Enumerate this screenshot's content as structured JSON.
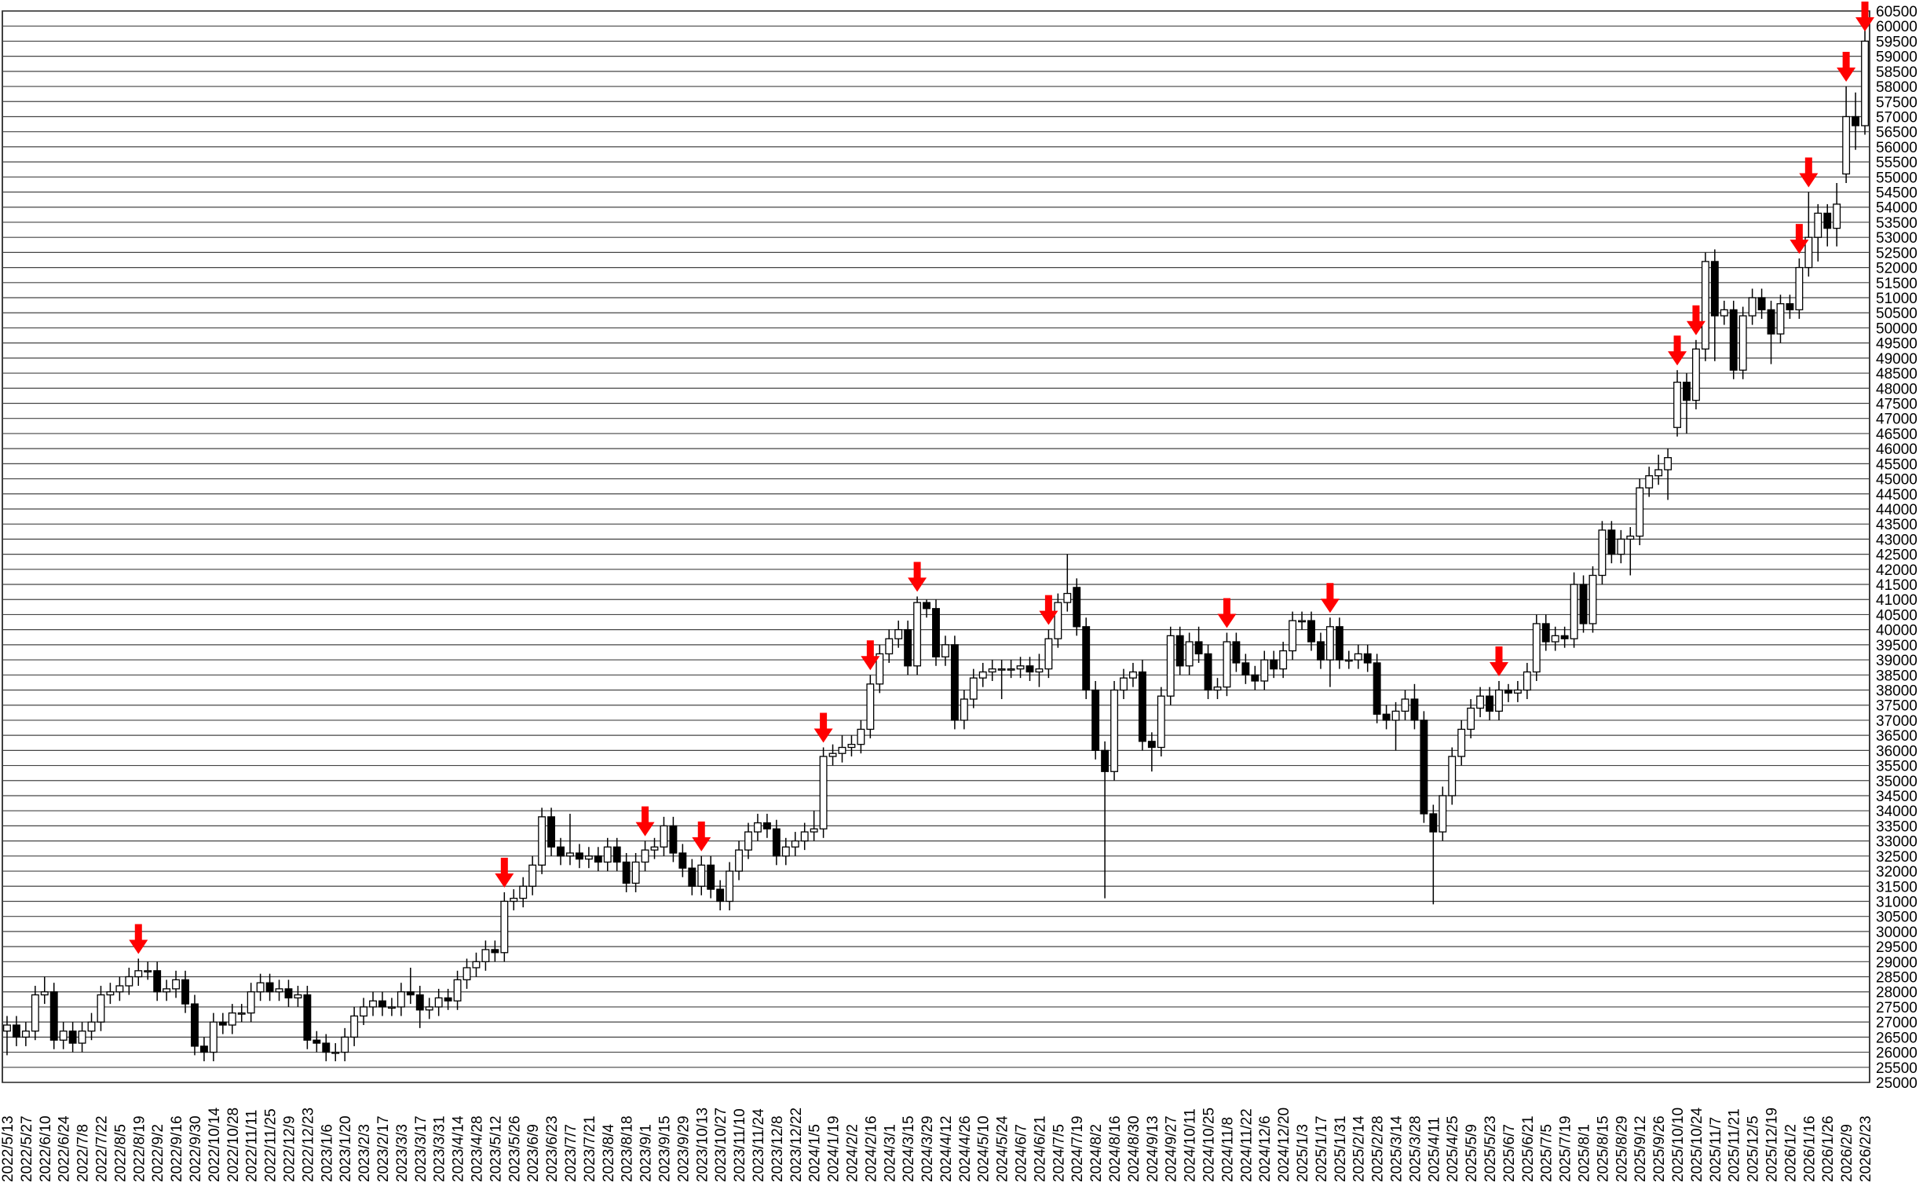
{
  "chart_data": {
    "type": "candlestick",
    "categories": [
      "2022/5/13",
      null,
      "2022/5/27",
      null,
      "2022/6/10",
      null,
      "2022/6/24",
      null,
      "2022/7/8",
      null,
      "2022/7/22",
      null,
      "2022/8/5",
      null,
      "2022/8/19",
      null,
      "2022/9/2",
      null,
      "2022/9/16",
      null,
      "2022/9/30",
      null,
      "2022/10/14",
      null,
      "2022/10/28",
      null,
      "2022/11/11",
      null,
      "2022/11/25",
      null,
      "2022/12/9",
      null,
      "2022/12/23",
      null,
      "2023/1/6",
      null,
      "2023/1/20",
      null,
      "2023/2/3",
      null,
      "2023/2/17",
      null,
      "2023/3/3",
      null,
      "2023/3/17",
      null,
      "2023/3/31",
      null,
      "2023/4/14",
      null,
      "2023/4/28",
      null,
      "2023/5/12",
      null,
      "2023/5/26",
      null,
      "2023/6/9",
      null,
      "2023/6/23",
      null,
      "2023/7/7",
      null,
      "2023/7/21",
      null,
      "2023/8/4",
      null,
      "2023/8/18",
      null,
      "2023/9/1",
      null,
      "2023/9/15",
      null,
      "2023/9/29",
      null,
      "2023/10/13",
      null,
      "2023/10/27",
      null,
      "2023/11/10",
      null,
      "2023/11/24",
      null,
      "2023/12/8",
      null,
      "2023/12/22",
      null,
      "2024/1/5",
      null,
      "2024/1/19",
      null,
      "2024/2/2",
      null,
      "2024/2/16",
      null,
      "2024/3/1",
      null,
      "2024/3/15",
      null,
      "2024/3/29",
      null,
      "2024/4/12",
      null,
      "2024/4/26",
      null,
      "2024/5/10",
      null,
      "2024/5/24",
      null,
      "2024/6/7",
      null,
      "2024/6/21",
      null,
      "2024/7/5",
      null,
      "2024/7/19",
      null,
      "2024/8/2",
      null,
      "2024/8/16",
      null,
      "2024/8/30",
      null,
      "2024/9/13",
      null,
      "2024/9/27",
      null,
      "2024/10/11",
      null,
      "2024/10/25",
      null,
      "2024/11/8",
      null,
      "2024/11/22",
      null,
      "2024/12/6",
      null,
      "2024/12/20",
      null,
      "2025/1/3",
      null,
      "2025/1/17",
      null,
      "2025/1/31",
      null,
      "2025/2/14",
      null,
      "2025/2/28",
      null,
      "2025/3/14",
      null,
      "2025/3/28",
      null,
      "2025/4/11",
      null,
      "2025/4/25",
      null,
      "2025/5/9",
      null,
      "2025/5/23",
      null,
      "2025/6/7",
      null,
      "2025/6/21",
      null,
      "2025/7/5",
      null,
      "2025/7/19",
      null,
      "2025/8/1",
      null,
      "2025/8/15",
      null,
      "2025/8/29",
      null,
      "2025/9/12",
      null,
      "2025/9/26",
      null,
      "2025/10/10",
      null,
      "2025/10/24",
      null,
      "2025/11/7",
      null,
      "2025/11/21",
      null,
      "2025/12/5",
      null,
      "2025/12/19",
      null,
      "2026/1/2",
      null,
      "2026/1/16",
      null,
      "2026/1/26",
      null,
      "2026/2/9",
      null,
      "2026/2/23"
    ],
    "open": [
      26700,
      26900,
      26500,
      26700,
      27900,
      28000,
      26400,
      26700,
      26300,
      26700,
      27000,
      27900,
      28000,
      28200,
      28500,
      28700,
      28700,
      28000,
      28100,
      28400,
      27600,
      26200,
      26000,
      27000,
      26900,
      27300,
      27300,
      28000,
      28300,
      28000,
      28100,
      27800,
      27900,
      26400,
      26300,
      26000,
      26000,
      26500,
      27200,
      27500,
      27700,
      27500,
      27500,
      28000,
      27900,
      27400,
      27500,
      27800,
      27700,
      28400,
      28800,
      29000,
      29400,
      29300,
      31000,
      31100,
      31500,
      32200,
      33800,
      32800,
      32500,
      32600,
      32400,
      32500,
      32300,
      32800,
      32300,
      31600,
      32300,
      32700,
      32800,
      33500,
      32600,
      32100,
      31500,
      32200,
      31400,
      31000,
      32000,
      32700,
      33300,
      33600,
      33400,
      32500,
      32800,
      33000,
      33300,
      33400,
      35800,
      35900,
      36100,
      36200,
      36700,
      38200,
      39200,
      39700,
      40000,
      38800,
      40900,
      40700,
      39100,
      39500,
      37000,
      37700,
      38400,
      38600,
      38700,
      38700,
      38700,
      38800,
      38600,
      38700,
      39700,
      40900,
      41400,
      40100,
      38000,
      36000,
      35300,
      38000,
      38400,
      38600,
      36300,
      36100,
      37800,
      39800,
      38800,
      39600,
      39200,
      38000,
      38100,
      39600,
      38900,
      38500,
      38300,
      39000,
      38700,
      39300,
      40300,
      40300,
      39600,
      39000,
      40100,
      39000,
      39000,
      39200,
      38900,
      37200,
      37000,
      37300,
      37700,
      37000,
      33900,
      33300,
      34500,
      35800,
      36700,
      37400,
      37800,
      37300,
      38000,
      37900,
      38000,
      38600,
      40200,
      39600,
      39800,
      39700,
      41500,
      40200,
      41800,
      43300,
      42500,
      43000,
      43100,
      44700,
      45100,
      45300,
      46700,
      48200,
      47600,
      49300,
      52200,
      50400,
      50600,
      48600,
      50400,
      51000,
      50600,
      49800,
      50800,
      50600,
      52000,
      53000,
      53800,
      53300,
      55100,
      57000,
      56700
    ],
    "high": [
      27200,
      27200,
      27000,
      28200,
      28500,
      28300,
      27000,
      27000,
      27000,
      27300,
      28200,
      28300,
      28500,
      28800,
      29100,
      29000,
      29000,
      28400,
      28700,
      28700,
      27900,
      26500,
      27300,
      27300,
      27600,
      27600,
      28300,
      28600,
      28600,
      28400,
      28400,
      28200,
      28200,
      26700,
      26600,
      26300,
      26800,
      27500,
      27800,
      28000,
      28000,
      27800,
      28300,
      28800,
      28200,
      27800,
      28100,
      28100,
      28700,
      29100,
      29300,
      29700,
      29700,
      31300,
      31400,
      31800,
      32500,
      34100,
      34100,
      33100,
      33900,
      32900,
      32800,
      32800,
      33100,
      33100,
      32600,
      32600,
      33000,
      33100,
      33800,
      33800,
      32900,
      32400,
      32500,
      32500,
      31700,
      32300,
      33000,
      33600,
      33900,
      33900,
      33700,
      33100,
      33300,
      33600,
      34000,
      36100,
      36200,
      36500,
      36500,
      37000,
      38500,
      39500,
      40000,
      40300,
      40300,
      41100,
      41000,
      41000,
      39800,
      39800,
      38000,
      38700,
      38900,
      39000,
      39000,
      39000,
      39100,
      39100,
      39200,
      40000,
      41200,
      42500,
      41700,
      40400,
      38300,
      36300,
      38300,
      38700,
      38900,
      39000,
      36600,
      38100,
      40100,
      40100,
      39900,
      40100,
      39500,
      38400,
      39900,
      39900,
      39200,
      38800,
      39300,
      39300,
      39600,
      40600,
      40600,
      40600,
      39900,
      40400,
      40400,
      39300,
      39500,
      39500,
      39200,
      37500,
      37600,
      38000,
      38200,
      37300,
      34200,
      34800,
      36100,
      37000,
      37700,
      38100,
      38100,
      38300,
      38200,
      38300,
      38900,
      40500,
      40500,
      40100,
      40100,
      41900,
      41800,
      42100,
      43600,
      43600,
      43300,
      43400,
      45000,
      45400,
      45800,
      46000,
      48600,
      48500,
      49600,
      52500,
      52600,
      50900,
      50900,
      50700,
      51300,
      51300,
      50900,
      51100,
      51100,
      52300,
      54500,
      54100,
      54100,
      54800,
      58000,
      57800,
      60200
    ],
    "low": [
      25900,
      26200,
      26200,
      26400,
      27600,
      26100,
      26100,
      26000,
      26000,
      26400,
      26700,
      27600,
      27700,
      27900,
      28200,
      28400,
      27700,
      27700,
      27800,
      27300,
      25900,
      25700,
      25700,
      26600,
      26600,
      27000,
      27000,
      27700,
      27700,
      27700,
      27500,
      27500,
      26100,
      26000,
      25700,
      25700,
      25700,
      26200,
      26900,
      27200,
      27200,
      27200,
      27200,
      27600,
      26800,
      27100,
      27200,
      27400,
      27400,
      28100,
      28500,
      28700,
      29000,
      29000,
      30700,
      30800,
      31200,
      31900,
      32500,
      32200,
      32200,
      32100,
      32100,
      32000,
      32000,
      32000,
      31300,
      31300,
      32000,
      32400,
      32500,
      32300,
      31800,
      31200,
      31200,
      31100,
      30700,
      30700,
      31700,
      32400,
      33000,
      33100,
      32200,
      32200,
      32500,
      32700,
      33000,
      33100,
      35500,
      35600,
      35800,
      35900,
      36400,
      37900,
      38900,
      39400,
      38500,
      38500,
      40400,
      38800,
      38800,
      36700,
      36700,
      37400,
      38100,
      38300,
      37700,
      38400,
      38400,
      38300,
      38100,
      38400,
      39400,
      40600,
      39800,
      37700,
      35700,
      31100,
      35000,
      37700,
      38100,
      36000,
      35300,
      35800,
      37500,
      38500,
      38500,
      38900,
      37700,
      37700,
      37800,
      38600,
      38200,
      38000,
      38000,
      38400,
      38400,
      39000,
      40000,
      39300,
      38700,
      38100,
      38700,
      38700,
      38700,
      38600,
      36900,
      36700,
      36000,
      37000,
      36700,
      33600,
      30900,
      33000,
      34200,
      35500,
      36400,
      37100,
      37000,
      37000,
      37600,
      37600,
      37700,
      38300,
      39300,
      39300,
      39400,
      39400,
      39900,
      39900,
      41500,
      42200,
      42200,
      41800,
      42800,
      44400,
      44800,
      44300,
      46400,
      46500,
      47300,
      48900,
      48900,
      50100,
      48300,
      48300,
      50100,
      50300,
      48800,
      49500,
      50300,
      50300,
      51700,
      52200,
      52700,
      52700,
      54800,
      55900,
      56400
    ],
    "close": [
      26900,
      26500,
      26700,
      27900,
      28000,
      26400,
      26700,
      26300,
      26700,
      27000,
      27900,
      28000,
      28200,
      28500,
      28700,
      28700,
      28000,
      28100,
      28400,
      27600,
      26200,
      26000,
      27000,
      26900,
      27300,
      27300,
      28000,
      28300,
      28000,
      28100,
      27800,
      27900,
      26400,
      26300,
      26000,
      26000,
      26500,
      27200,
      27500,
      27700,
      27500,
      27500,
      28000,
      27900,
      27400,
      27500,
      27800,
      27700,
      28400,
      28800,
      29000,
      29400,
      29300,
      31000,
      31100,
      31500,
      32200,
      33800,
      32800,
      32500,
      32600,
      32400,
      32500,
      32300,
      32800,
      32300,
      31600,
      32300,
      32700,
      32800,
      33500,
      32600,
      32100,
      31500,
      32200,
      31400,
      31000,
      32000,
      32700,
      33300,
      33600,
      33400,
      32500,
      32800,
      33000,
      33300,
      33400,
      35800,
      35900,
      36100,
      36200,
      36700,
      38200,
      39200,
      39700,
      40000,
      38800,
      40900,
      40700,
      39100,
      39500,
      37000,
      37700,
      38400,
      38600,
      38700,
      38700,
      38700,
      38800,
      38600,
      38700,
      39700,
      40900,
      41200,
      40100,
      38000,
      36000,
      35300,
      38000,
      38400,
      38600,
      36300,
      36100,
      37800,
      39800,
      38800,
      39600,
      39200,
      38000,
      38100,
      39600,
      38900,
      38500,
      38300,
      39000,
      38700,
      39300,
      40300,
      40300,
      39600,
      39000,
      40100,
      39000,
      39000,
      39200,
      38900,
      37200,
      37000,
      37300,
      37700,
      37000,
      33900,
      33300,
      34500,
      35800,
      36700,
      37400,
      37800,
      37300,
      38000,
      37900,
      38000,
      38600,
      40200,
      39600,
      39800,
      39700,
      41500,
      40200,
      41800,
      43300,
      42500,
      43000,
      43100,
      44700,
      45100,
      45300,
      45700,
      48200,
      47600,
      49300,
      52200,
      50400,
      50600,
      48600,
      50400,
      51000,
      50600,
      49800,
      50800,
      50600,
      52000,
      53000,
      53800,
      53300,
      54100,
      57000,
      56700,
      59500
    ],
    "up_color": "#ffffff",
    "down_color": "#000000",
    "arrows": [
      14,
      53,
      68,
      74,
      87,
      92,
      97,
      111,
      130,
      141,
      159,
      178,
      180,
      191,
      192,
      196,
      198
    ],
    "arrow_color": "#ff0000",
    "ylim": [
      25000,
      60500
    ],
    "yticks": [
      25000,
      25500,
      26000,
      26500,
      27000,
      27500,
      28000,
      28500,
      29000,
      29500,
      30000,
      30500,
      31000,
      31500,
      32000,
      32500,
      33000,
      33500,
      34000,
      34500,
      35000,
      35500,
      36000,
      36500,
      37000,
      37500,
      38000,
      38500,
      39000,
      39500,
      40000,
      40500,
      41000,
      41500,
      42000,
      42500,
      43000,
      43500,
      44000,
      44500,
      45000,
      45500,
      46000,
      46500,
      47000,
      47500,
      48000,
      48500,
      49000,
      49500,
      50000,
      50500,
      51000,
      51500,
      52000,
      52500,
      53000,
      53500,
      54000,
      54500,
      55000,
      55500,
      56000,
      56500,
      57000,
      57500,
      58000,
      58500,
      59000,
      59500,
      60000,
      60500
    ],
    "grid": true,
    "y_axis_side": "right"
  }
}
